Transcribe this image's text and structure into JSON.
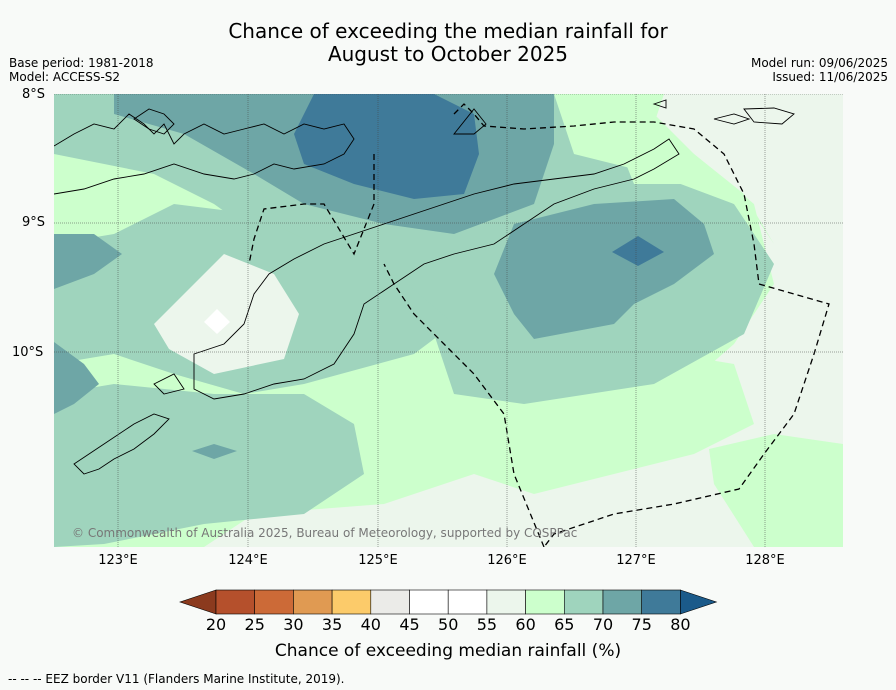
{
  "title": {
    "line1": "Chance of exceeding the median rainfall for",
    "line2": "August to October 2025"
  },
  "meta": {
    "base_period": "Base period: 1981-2018",
    "model": "Model: ACCESS-S2",
    "model_run": "Model run: 09/06/2025",
    "issued": "Issued: 11/06/2025"
  },
  "map": {
    "lat_labels": [
      "8°S",
      "9°S",
      "10°S"
    ],
    "lon_labels": [
      "123°E",
      "124°E",
      "125°E",
      "126°E",
      "127°E",
      "128°E"
    ],
    "copyright": "© Commonwealth of Australia 2025, Bureau of Meteorology, supported by COSPPac"
  },
  "colorbar": {
    "ticks": [
      "20",
      "25",
      "30",
      "35",
      "40",
      "45",
      "50",
      "55",
      "60",
      "65",
      "70",
      "75",
      "80"
    ],
    "colors": [
      "#8b3a1e",
      "#b5502c",
      "#cc6a37",
      "#e09a52",
      "#fccb6a",
      "#ebebe8",
      "#ffffff",
      "#ffffff",
      "#ecf6ec",
      "#ccffcc",
      "#9fd4bd",
      "#6ea6a6",
      "#3f7a99",
      "#1b5a8a"
    ],
    "label": "Chance of exceeding median rainfall (%)"
  },
  "footer": "--  --  -- EEZ border V11 (Flanders Marine Institute, 2019)."
}
